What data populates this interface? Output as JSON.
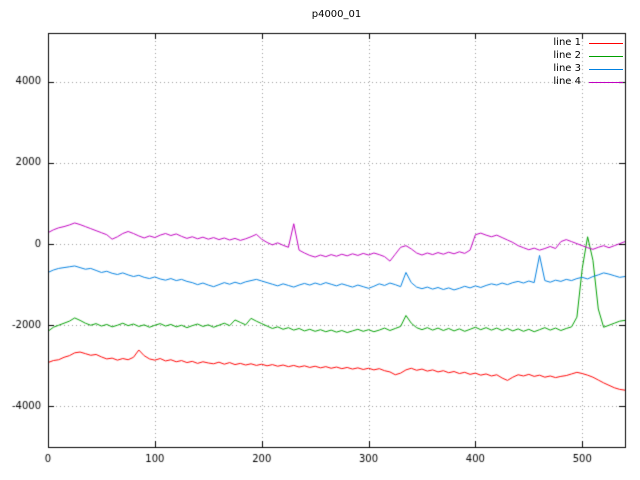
{
  "title": "p4000_01",
  "chart_data": {
    "type": "line",
    "title": "p4000_01",
    "xlabel": "",
    "ylabel": "",
    "xlim": [
      0,
      540
    ],
    "ylim": [
      -5000,
      5200
    ],
    "xticks": [
      0,
      100,
      200,
      300,
      400,
      500
    ],
    "yticks": [
      -4000,
      -2000,
      0,
      2000,
      4000
    ],
    "xtick_labels": [
      "0",
      "100",
      "200",
      "300",
      "400",
      "500"
    ],
    "ytick_labels": [
      "-4000",
      "-2000",
      "0",
      "2000",
      "4000"
    ],
    "grid": true,
    "grid_style": "dotted",
    "legend_position": "top-right-inside",
    "border_color": "#000000",
    "grid_color": "#9a9a9a",
    "x_start": 0,
    "x_step": 5,
    "series": [
      {
        "name": "line 1",
        "color": "#ff0000",
        "values": [
          -2920,
          -2870,
          -2850,
          -2790,
          -2750,
          -2680,
          -2660,
          -2700,
          -2740,
          -2720,
          -2780,
          -2830,
          -2810,
          -2860,
          -2820,
          -2850,
          -2790,
          -2610,
          -2750,
          -2830,
          -2860,
          -2820,
          -2880,
          -2850,
          -2900,
          -2870,
          -2920,
          -2890,
          -2940,
          -2900,
          -2930,
          -2950,
          -2910,
          -2960,
          -2920,
          -2970,
          -2940,
          -2980,
          -2950,
          -2990,
          -2960,
          -3000,
          -2970,
          -3010,
          -2980,
          -3020,
          -2990,
          -3030,
          -3000,
          -3040,
          -3010,
          -3050,
          -3020,
          -3060,
          -3030,
          -3070,
          -3040,
          -3080,
          -3050,
          -3090,
          -3060,
          -3100,
          -3070,
          -3120,
          -3150,
          -3220,
          -3180,
          -3100,
          -3060,
          -3110,
          -3080,
          -3130,
          -3100,
          -3150,
          -3120,
          -3170,
          -3140,
          -3190,
          -3160,
          -3210,
          -3180,
          -3230,
          -3200,
          -3250,
          -3220,
          -3300,
          -3360,
          -3280,
          -3220,
          -3250,
          -3210,
          -3260,
          -3230,
          -3280,
          -3250,
          -3290,
          -3260,
          -3240,
          -3200,
          -3160,
          -3190,
          -3230,
          -3280,
          -3350,
          -3420,
          -3480,
          -3540,
          -3580,
          -3600
        ]
      },
      {
        "name": "line 2",
        "color": "#00a000",
        "values": [
          -2150,
          -2050,
          -2000,
          -1950,
          -1900,
          -1820,
          -1880,
          -1950,
          -2000,
          -1960,
          -2020,
          -1980,
          -2040,
          -2000,
          -1950,
          -2010,
          -1970,
          -2030,
          -1990,
          -2050,
          -2000,
          -1960,
          -2020,
          -1980,
          -2040,
          -2000,
          -2060,
          -2010,
          -1970,
          -2030,
          -1990,
          -2050,
          -2000,
          -1950,
          -2010,
          -1870,
          -1930,
          -1990,
          -1830,
          -1900,
          -1960,
          -2020,
          -2080,
          -2040,
          -2100,
          -2060,
          -2120,
          -2080,
          -2140,
          -2100,
          -2150,
          -2110,
          -2160,
          -2120,
          -2170,
          -2130,
          -2180,
          -2140,
          -2100,
          -2150,
          -2110,
          -2160,
          -2120,
          -2070,
          -2130,
          -2080,
          -2030,
          -1760,
          -1950,
          -2060,
          -2110,
          -2060,
          -2120,
          -2070,
          -2130,
          -2080,
          -2140,
          -2090,
          -2150,
          -2100,
          -2050,
          -2110,
          -2060,
          -2120,
          -2070,
          -2130,
          -2080,
          -2140,
          -2090,
          -2150,
          -2100,
          -2160,
          -2110,
          -2060,
          -2120,
          -2070,
          -2130,
          -2080,
          -2040,
          -1800,
          -600,
          180,
          -400,
          -1600,
          -2050,
          -2000,
          -1950,
          -1900,
          -1880
        ]
      },
      {
        "name": "line 3",
        "color": "#0080e0",
        "values": [
          -700,
          -640,
          -600,
          -580,
          -560,
          -540,
          -580,
          -620,
          -600,
          -650,
          -700,
          -670,
          -720,
          -750,
          -710,
          -760,
          -800,
          -770,
          -820,
          -850,
          -810,
          -860,
          -890,
          -850,
          -900,
          -870,
          -920,
          -950,
          -1000,
          -960,
          -1010,
          -1050,
          -1000,
          -950,
          -990,
          -940,
          -980,
          -930,
          -900,
          -870,
          -910,
          -950,
          -990,
          -1030,
          -980,
          -1020,
          -1060,
          -1010,
          -970,
          -1010,
          -960,
          -1000,
          -950,
          -990,
          -1030,
          -980,
          -1020,
          -1060,
          -1010,
          -1050,
          -1090,
          -1040,
          -980,
          -1020,
          -960,
          -1000,
          -1050,
          -700,
          -950,
          -1060,
          -1100,
          -1060,
          -1110,
          -1070,
          -1120,
          -1080,
          -1130,
          -1090,
          -1040,
          -1080,
          -1030,
          -1070,
          -1020,
          -980,
          -1010,
          -960,
          -1000,
          -950,
          -920,
          -960,
          -910,
          -950,
          -280,
          -900,
          -940,
          -890,
          -920,
          -870,
          -900,
          -850,
          -820,
          -860,
          -800,
          -760,
          -710,
          -740,
          -780,
          -820,
          -800
        ]
      },
      {
        "name": "line 4",
        "color": "#c000c0",
        "values": [
          280,
          350,
          400,
          430,
          470,
          520,
          480,
          430,
          380,
          330,
          280,
          230,
          120,
          180,
          260,
          310,
          260,
          200,
          150,
          200,
          160,
          220,
          260,
          210,
          250,
          190,
          140,
          180,
          130,
          170,
          120,
          160,
          110,
          150,
          100,
          140,
          90,
          130,
          180,
          240,
          120,
          40,
          -20,
          30,
          -30,
          -80,
          500,
          -150,
          -220,
          -280,
          -320,
          -270,
          -310,
          -260,
          -300,
          -250,
          -290,
          -240,
          -280,
          -230,
          -270,
          -220,
          -260,
          -310,
          -420,
          -250,
          -80,
          -40,
          -120,
          -220,
          -270,
          -220,
          -260,
          -210,
          -250,
          -200,
          -240,
          -190,
          -230,
          -150,
          230,
          270,
          220,
          180,
          220,
          160,
          100,
          40,
          -40,
          -90,
          -140,
          -100,
          -150,
          -110,
          -60,
          -110,
          60,
          110,
          60,
          10,
          -40,
          -90,
          -130,
          -80,
          -40,
          -90,
          -40,
          10,
          60
        ]
      }
    ]
  }
}
